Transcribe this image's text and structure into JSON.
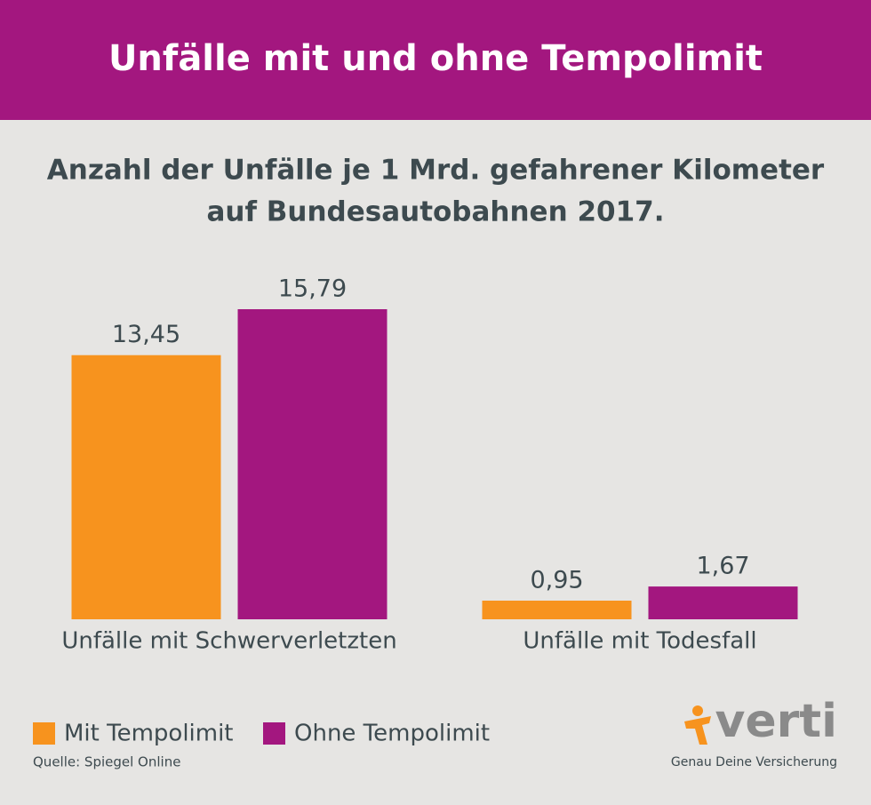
{
  "chart_data": {
    "type": "bar",
    "title": "Unfälle mit und ohne Tempolimit",
    "subtitle": [
      "Anzahl der Unfälle je 1 Mrd. gefahrener Kilometer",
      "auf Bundesautobahnen 2017."
    ],
    "categories": [
      "Unfälle mit Schwerverletzten",
      "Unfälle mit Todesfall"
    ],
    "series": [
      {
        "name": "Mit Tempolimit",
        "color": "#f7931e",
        "values": [
          13.45,
          0.95
        ],
        "value_labels": [
          "13,45",
          "0,95"
        ]
      },
      {
        "name": "Ohne Tempolimit",
        "color": "#a3177f",
        "values": [
          15.79,
          1.67
        ],
        "value_labels": [
          "15,79",
          "1,67"
        ]
      }
    ],
    "legend": "bottom-left",
    "source": "Quelle: Spiegel Online"
  },
  "branding": {
    "logo": "verti",
    "tagline": "Genau Deine Versicherung"
  }
}
